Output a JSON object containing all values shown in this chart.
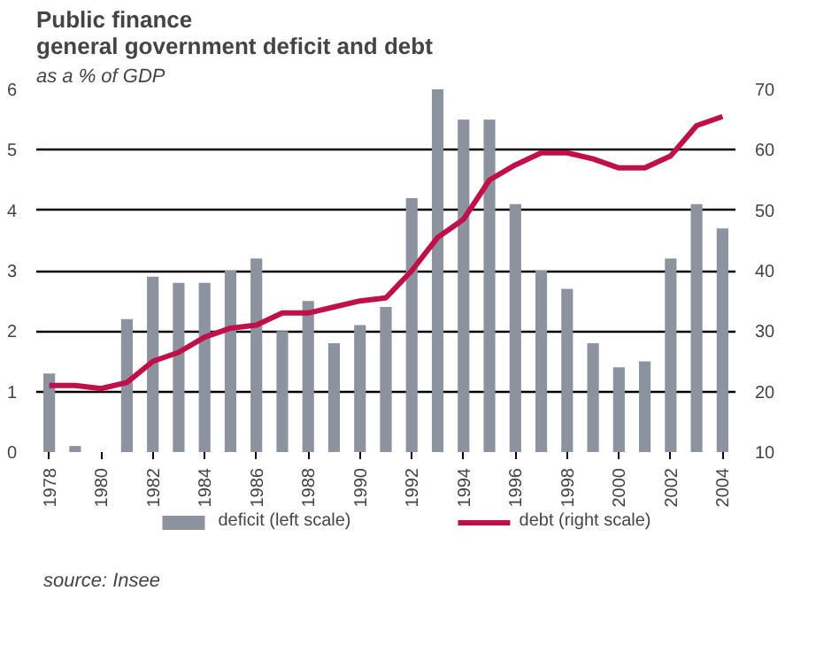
{
  "chart_data": {
    "type": "bar",
    "title": "Public finance\ngeneral government deficit and debt",
    "subtitle": "as a % of GDP",
    "annotations": [
      "source: Insee"
    ],
    "x": [
      1978,
      1979,
      1980,
      1981,
      1982,
      1983,
      1984,
      1985,
      1986,
      1987,
      1988,
      1989,
      1990,
      1991,
      1992,
      1993,
      1994,
      1995,
      1996,
      1997,
      1998,
      1999,
      2000,
      2001,
      2002,
      2003,
      2004
    ],
    "series": [
      {
        "name": "deficit (left scale)",
        "color": "#8c929e",
        "values": [
          1.3,
          0.1,
          0,
          2.2,
          2.9,
          2.8,
          2.8,
          3.0,
          3.2,
          2.0,
          2.5,
          1.8,
          2.1,
          2.4,
          4.2,
          6.0,
          5.5,
          5.5,
          4.1,
          3.0,
          2.7,
          1.8,
          1.4,
          1.5,
          3.2,
          4.1,
          3.7
        ]
      },
      {
        "name": "debt (right scale)",
        "color": "#c0104a",
        "type": "line",
        "axis": "y2",
        "values": [
          21,
          21,
          20.5,
          21.5,
          25,
          26.5,
          29,
          30.5,
          31,
          33,
          33,
          34,
          35,
          35.5,
          40,
          45.5,
          48.5,
          55,
          57.5,
          59.5,
          59.5,
          58.5,
          57,
          57,
          59,
          64,
          65.5
        ]
      }
    ],
    "xlim": [
      1977.5,
      2004.5
    ],
    "xticks": [
      1978,
      1980,
      1982,
      1984,
      1986,
      1988,
      1990,
      1992,
      1994,
      1996,
      1998,
      2000,
      2002,
      2004
    ],
    "ylim": [
      0,
      6
    ],
    "yticks": [
      0,
      1,
      2,
      3,
      4,
      5,
      6
    ],
    "y2lim": [
      10,
      70
    ],
    "y2ticks": [
      10,
      20,
      30,
      40,
      50,
      60,
      70
    ],
    "grid": "y",
    "legend": "bottom",
    "line_style": "solid",
    "marker": "none"
  }
}
